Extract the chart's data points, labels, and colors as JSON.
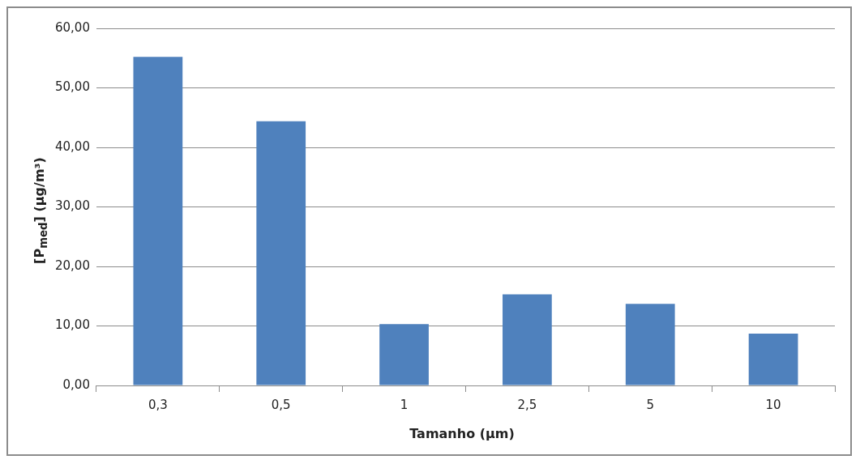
{
  "chart_data": {
    "type": "bar",
    "xlabel": "Tamanho (µm)",
    "ylabel": "[P$_{med}$] (µg/m³)",
    "categories": [
      "0,3",
      "0,5",
      "1",
      "2,5",
      "5",
      "10"
    ],
    "values": [
      55.2,
      44.4,
      10.3,
      15.3,
      13.7,
      8.7
    ],
    "color": "#4f81bd",
    "ylim": [
      0,
      60
    ],
    "yticks": [
      {
        "value": 0,
        "label": "0,00"
      },
      {
        "value": 10,
        "label": "10,00"
      },
      {
        "value": 20,
        "label": "20,00"
      },
      {
        "value": 30,
        "label": "30,00"
      },
      {
        "value": 40,
        "label": "40,00"
      },
      {
        "value": 50,
        "label": "50,00"
      },
      {
        "value": 60,
        "label": "60,00"
      }
    ],
    "grid": "y",
    "legend": false
  }
}
